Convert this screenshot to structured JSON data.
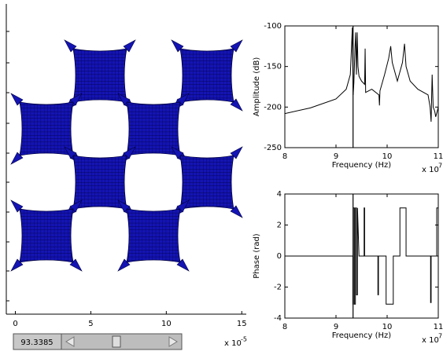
{
  "chart_data": [
    {
      "type": "mesh",
      "xlim": [
        -0.6,
        15.3
      ],
      "xticks": [
        0,
        5,
        10,
        15
      ],
      "exponent_base": "x 10",
      "exponent": -5,
      "color": "#1414b4"
    },
    {
      "type": "line",
      "xlabel": "Frequency (Hz)",
      "ylabel": "Amplitude (dB)",
      "xlim": [
        8,
        11
      ],
      "ylim": [
        -250,
        -100
      ],
      "xticks": [
        8,
        9,
        10,
        11
      ],
      "yticks": [
        -250,
        -200,
        -150,
        -100
      ],
      "exponent_base": "x 10",
      "exponent": 7,
      "cursor": 9.33385,
      "x": [
        8,
        8.5,
        9,
        9.2,
        9.28,
        9.32,
        9.335,
        9.35,
        9.37,
        9.385,
        9.4,
        9.415,
        9.43,
        9.45,
        9.5,
        9.56,
        9.57,
        9.58,
        9.7,
        9.84,
        9.85,
        9.86,
        9.95,
        10.03,
        10.07,
        10.1,
        10.2,
        10.3,
        10.34,
        10.37,
        10.45,
        10.6,
        10.8,
        10.84,
        10.86,
        10.88,
        10.9,
        10.93,
        10.95,
        10.98,
        11
      ],
      "series": [
        {
          "color": "#000000",
          "values": [
            -208,
            -201,
            -190,
            -178,
            -160,
            -102,
            -185,
            -170,
            -130,
            -108,
            -160,
            -108,
            -150,
            -162,
            -168,
            -172,
            -128,
            -182,
            -178,
            -185,
            -198,
            -180,
            -160,
            -140,
            -125,
            -145,
            -168,
            -145,
            -122,
            -150,
            -168,
            -178,
            -185,
            -200,
            -218,
            -160,
            -200,
            -205,
            -212,
            -205,
            -200
          ]
        }
      ]
    },
    {
      "type": "line",
      "xlabel": "Frequency (Hz)",
      "ylabel": "Phase (rad)",
      "xlim": [
        8,
        11
      ],
      "ylim": [
        -4,
        4
      ],
      "xticks": [
        8,
        9,
        10,
        11
      ],
      "yticks": [
        -4,
        -2,
        0,
        2,
        4
      ],
      "exponent_base": "x 10",
      "exponent": 7,
      "cursor": 9.33385,
      "x": [
        8,
        9.33,
        9.33,
        9.34,
        9.34,
        9.36,
        9.36,
        9.38,
        9.38,
        9.4,
        9.4,
        9.42,
        9.42,
        9.45,
        9.55,
        9.55,
        9.56,
        9.56,
        9.82,
        9.82,
        9.83,
        9.83,
        9.98,
        9.98,
        10.12,
        10.12,
        10.25,
        10.25,
        10.37,
        10.37,
        10.85,
        10.85,
        10.86,
        10.86,
        10.97,
        10.97,
        11
      ],
      "series": [
        {
          "color": "#000000",
          "values": [
            0,
            0,
            -3.1,
            -3.1,
            3.1,
            3.1,
            -3.1,
            -3.1,
            3.1,
            3.1,
            -2.5,
            -2.5,
            3.1,
            0,
            0,
            3.1,
            3.1,
            0,
            0,
            -2.5,
            -2.5,
            0,
            0,
            -3.1,
            -3.1,
            0,
            0,
            3.1,
            3.1,
            0,
            0,
            -3,
            -3,
            0,
            0,
            3.1,
            3.1
          ]
        }
      ]
    }
  ],
  "controls": {
    "edit_text": "93.3385"
  }
}
